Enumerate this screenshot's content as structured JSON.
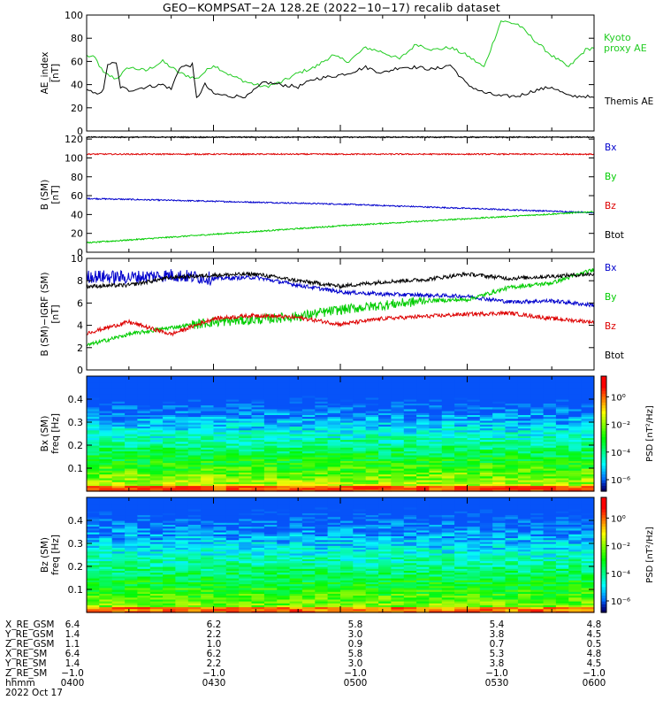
{
  "title": "GEO−KOMPSAT−2A 128.2E (2022−10−17) recalib dataset",
  "colors": {
    "bx": "#0000cc",
    "by": "#00cc00",
    "bz": "#dd0000",
    "btot": "#000000",
    "ae_kyoto": "#22cc22",
    "ae_themis": "#000000"
  },
  "chart_data": [
    {
      "type": "line",
      "id": "ae",
      "ylabel": "AE_index\n[nT]",
      "ylim": [
        0,
        100
      ],
      "yticks": [
        0,
        20,
        40,
        60,
        80,
        100
      ],
      "series": [
        {
          "name": "Kyoto\nproxy AE",
          "color": "#22cc22",
          "x": [
            0,
            2,
            4,
            7,
            10,
            14,
            18,
            22,
            26,
            30,
            34,
            38,
            42,
            46,
            50,
            54,
            58,
            62,
            66,
            70,
            74,
            78,
            82,
            86,
            90,
            94,
            98,
            102,
            106,
            110,
            114,
            118,
            120
          ],
          "y": [
            65,
            63,
            50,
            45,
            55,
            52,
            60,
            50,
            45,
            57,
            48,
            42,
            38,
            42,
            50,
            55,
            65,
            60,
            72,
            68,
            62,
            75,
            70,
            72,
            65,
            55,
            95,
            92,
            78,
            65,
            55,
            70,
            72
          ]
        },
        {
          "name": "Themis AE",
          "color": "#000000",
          "x": [
            0,
            2,
            4,
            5,
            7,
            8,
            10,
            14,
            18,
            20,
            22,
            25,
            26,
            28,
            30,
            34,
            38,
            42,
            46,
            50,
            54,
            58,
            62,
            66,
            70,
            74,
            78,
            82,
            86,
            90,
            94,
            98,
            102,
            106,
            110,
            114,
            118,
            120
          ],
          "y": [
            35,
            32,
            35,
            58,
            58,
            38,
            35,
            38,
            40,
            36,
            55,
            57,
            28,
            40,
            32,
            30,
            30,
            42,
            40,
            38,
            45,
            47,
            50,
            55,
            50,
            55,
            55,
            53,
            57,
            40,
            33,
            30,
            30,
            35,
            38,
            30,
            30,
            28
          ]
        }
      ]
    },
    {
      "type": "line",
      "id": "b",
      "ylabel": "B (SM)\n[nT]",
      "ylim": [
        0,
        122
      ],
      "yticks": [
        0,
        20,
        40,
        60,
        80,
        100,
        120
      ],
      "series": [
        {
          "name": "Bx",
          "color": "#0000cc",
          "x": [
            0,
            20,
            40,
            60,
            80,
            100,
            120
          ],
          "y": [
            57,
            55,
            53,
            51,
            48,
            45,
            42
          ]
        },
        {
          "name": "By",
          "color": "#00cc00",
          "x": [
            0,
            20,
            40,
            60,
            80,
            100,
            120
          ],
          "y": [
            10,
            16,
            22,
            28,
            33,
            38,
            43
          ]
        },
        {
          "name": "Bz",
          "color": "#dd0000",
          "x": [
            0,
            120
          ],
          "y": [
            104,
            104
          ]
        },
        {
          "name": "Btot",
          "color": "#000000",
          "x": [
            0,
            120
          ],
          "y": [
            122,
            122
          ]
        }
      ]
    },
    {
      "type": "line",
      "id": "bdiff",
      "ylabel": "B (SM)−IGRF (SM)\n[nT]",
      "ylim": [
        0,
        10
      ],
      "yticks": [
        0,
        2,
        4,
        6,
        8,
        10
      ],
      "series": [
        {
          "name": "Bx",
          "color": "#0000cc",
          "x": [
            0,
            10,
            20,
            30,
            40,
            50,
            60,
            70,
            80,
            90,
            100,
            110,
            120
          ],
          "y": [
            8.4,
            8.3,
            8.5,
            8.2,
            8.3,
            7.6,
            7.0,
            6.8,
            6.7,
            6.6,
            6.1,
            6.2,
            5.8
          ]
        },
        {
          "name": "By",
          "color": "#00cc00",
          "x": [
            0,
            10,
            20,
            30,
            40,
            50,
            60,
            70,
            80,
            90,
            100,
            110,
            120
          ],
          "y": [
            2.2,
            3.2,
            3.8,
            4.3,
            4.5,
            4.8,
            5.4,
            5.8,
            6.2,
            6.3,
            7.4,
            7.8,
            9.0
          ]
        },
        {
          "name": "Bz",
          "color": "#dd0000",
          "x": [
            0,
            10,
            20,
            30,
            40,
            50,
            60,
            70,
            80,
            90,
            100,
            110,
            120
          ],
          "y": [
            3.3,
            4.3,
            3.2,
            4.6,
            4.9,
            4.7,
            4.1,
            4.6,
            4.8,
            5.0,
            5.1,
            4.6,
            4.3
          ]
        },
        {
          "name": "Btot",
          "color": "#000000",
          "x": [
            0,
            10,
            20,
            30,
            40,
            50,
            60,
            70,
            80,
            90,
            100,
            110,
            120
          ],
          "y": [
            7.5,
            7.6,
            8.3,
            8.5,
            8.6,
            8.0,
            7.5,
            7.9,
            8.1,
            8.6,
            8.2,
            8.4,
            8.6
          ]
        }
      ]
    },
    {
      "type": "heatmap",
      "id": "spec_bx",
      "ylabel": "Bx (SM)\nfreq [Hz]",
      "ylim": [
        0,
        0.5
      ],
      "yticks": [
        0.1,
        0.2,
        0.3,
        0.4
      ],
      "colorbar": {
        "label": "PSD [nT²/Hz]",
        "ticks": [
          "10⁰",
          "10⁻²",
          "10⁻⁴",
          "10⁻⁶"
        ]
      }
    },
    {
      "type": "heatmap",
      "id": "spec_bz",
      "ylabel": "Bz (SM)\nfreq [Hz]",
      "ylim": [
        0,
        0.5
      ],
      "yticks": [
        0.1,
        0.2,
        0.3,
        0.4
      ],
      "colorbar": {
        "label": "PSD [nT²/Hz]",
        "ticks": [
          "10⁰",
          "10⁻²",
          "10⁻⁴",
          "10⁻⁶"
        ]
      }
    }
  ],
  "ephemeris": {
    "rows": [
      {
        "label": "X_RE_GSM",
        "values": [
          "6.4",
          "6.2",
          "5.8",
          "5.4",
          "4.8"
        ]
      },
      {
        "label": "Y_RE_GSM",
        "values": [
          "1.4",
          "2.2",
          "3.0",
          "3.8",
          "4.5"
        ]
      },
      {
        "label": "Z_RE_GSM",
        "values": [
          "1.1",
          "1.0",
          "0.9",
          "0.7",
          "0.5"
        ]
      },
      {
        "label": "X_RE_SM",
        "values": [
          "6.4",
          "6.2",
          "5.8",
          "5.3",
          "4.8"
        ]
      },
      {
        "label": "Y_RE_SM",
        "values": [
          "1.4",
          "2.2",
          "3.0",
          "3.8",
          "4.5"
        ]
      },
      {
        "label": "Z_RE_SM",
        "values": [
          "−1.0",
          "−1.0",
          "−1.0",
          "−1.0",
          "−1.0"
        ]
      },
      {
        "label": "hhmm",
        "values": [
          "0400",
          "0430",
          "0500",
          "0530",
          "0600"
        ]
      }
    ],
    "date": "2022 Oct 17"
  }
}
